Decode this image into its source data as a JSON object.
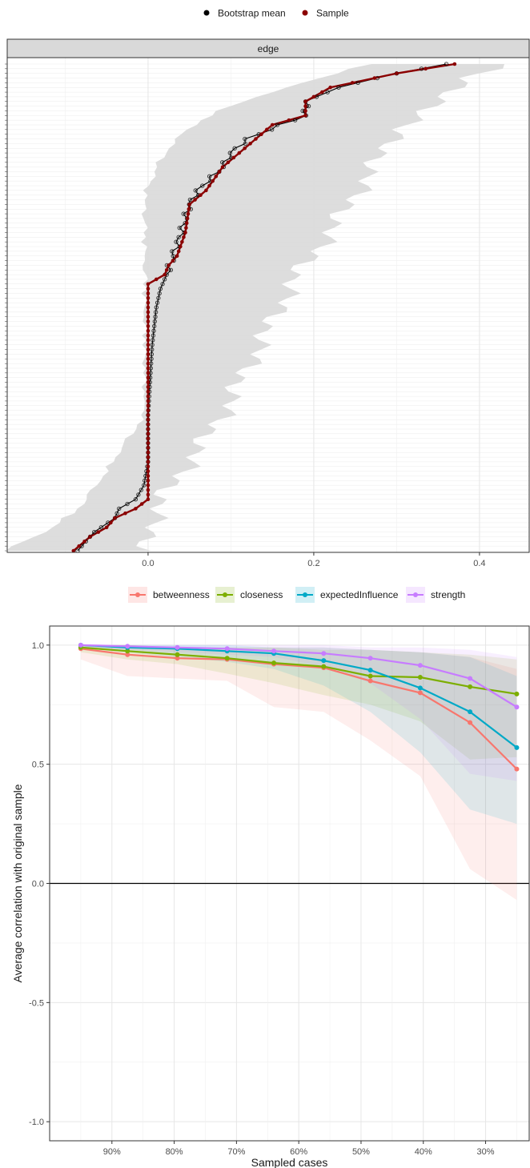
{
  "charts": [
    {
      "type": "line",
      "panel_strip": "edge",
      "legend_position": "top",
      "legend": [
        {
          "label": "Bootstrap mean",
          "color": "#000000"
        },
        {
          "label": "Sample",
          "color": "#8b0000"
        }
      ],
      "x_ticks": [
        0.0,
        0.2,
        0.4
      ],
      "x_tick_labels": [
        "0.0",
        "0.2",
        "0.4"
      ],
      "xlim": [
        -0.17,
        0.46
      ],
      "n_edges": 105,
      "grid": true,
      "band_color": "#d9d9d9",
      "sample_color": "#8b0000",
      "mean_color": "#000000"
    },
    {
      "type": "line",
      "legend_position": "top",
      "xlabel": "Sampled cases",
      "ylabel": "Average correlation with original sample",
      "x": [
        95,
        87.5,
        79.5,
        71.5,
        64,
        56,
        48.5,
        40.5,
        32.5,
        25
      ],
      "x_ticks": [
        90,
        80,
        70,
        60,
        50,
        40,
        30
      ],
      "x_tick_labels": [
        "90%",
        "80%",
        "70%",
        "60%",
        "50%",
        "40%",
        "30%"
      ],
      "xlim": [
        100,
        23
      ],
      "y_ticks": [
        1.0,
        0.5,
        0.0,
        -0.5,
        -1.0
      ],
      "y_tick_labels": [
        "1.0",
        "0.5",
        "0.0",
        "-0.5",
        "-1.0"
      ],
      "ylim": [
        -1.08,
        1.08
      ],
      "grid": true,
      "series": [
        {
          "name": "betweenness",
          "color": "#f8766d",
          "values": [
            0.985,
            0.96,
            0.945,
            0.94,
            0.92,
            0.905,
            0.85,
            0.8,
            0.675,
            0.48
          ],
          "lower": [
            0.94,
            0.87,
            0.86,
            0.85,
            0.74,
            0.72,
            0.6,
            0.45,
            0.06,
            -0.07
          ],
          "upper": [
            1.0,
            1.0,
            0.99,
            0.99,
            0.99,
            0.99,
            0.98,
            0.97,
            0.95,
            0.9
          ]
        },
        {
          "name": "closeness",
          "color": "#7cae00",
          "values": [
            0.99,
            0.975,
            0.96,
            0.945,
            0.925,
            0.91,
            0.87,
            0.865,
            0.825,
            0.795
          ],
          "lower": [
            0.97,
            0.94,
            0.92,
            0.88,
            0.84,
            0.79,
            0.75,
            0.68,
            0.52,
            0.53
          ],
          "upper": [
            1.0,
            1.0,
            0.99,
            0.99,
            0.99,
            0.98,
            0.98,
            0.97,
            0.96,
            0.94
          ]
        },
        {
          "name": "expectedInfluence",
          "color": "#00a9c7",
          "values": [
            1.0,
            0.99,
            0.985,
            0.975,
            0.965,
            0.935,
            0.895,
            0.82,
            0.72,
            0.57
          ],
          "lower": [
            0.99,
            0.97,
            0.95,
            0.93,
            0.9,
            0.83,
            0.72,
            0.55,
            0.31,
            0.25
          ],
          "upper": [
            1.0,
            1.0,
            1.0,
            1.0,
            0.99,
            0.99,
            0.98,
            0.97,
            0.95,
            0.87
          ]
        },
        {
          "name": "strength",
          "color": "#c77cff",
          "values": [
            1.0,
            0.995,
            0.99,
            0.985,
            0.975,
            0.965,
            0.945,
            0.915,
            0.86,
            0.74
          ],
          "lower": [
            0.99,
            0.98,
            0.97,
            0.96,
            0.95,
            0.91,
            0.84,
            0.69,
            0.46,
            0.43
          ],
          "upper": [
            1.0,
            1.0,
            1.0,
            1.0,
            1.0,
            1.0,
            0.99,
            0.99,
            0.98,
            0.95
          ]
        }
      ]
    }
  ]
}
